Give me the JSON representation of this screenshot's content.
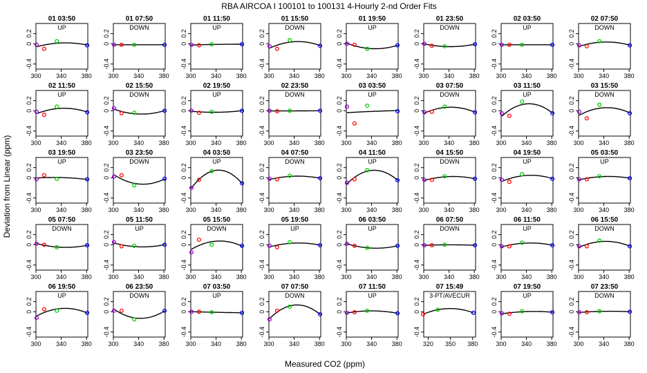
{
  "chart_data": {
    "type": "scatter",
    "title": "RBA   AIRCOA I   100101 to 100131   4-Hourly 2-nd Order Fits",
    "xlabel": "Measured CO2 (ppm)",
    "ylabel": "Deviation from Linear (ppm)",
    "xlim": [
      300,
      382
    ],
    "ylim": [
      -0.5,
      0.4
    ],
    "x_ticks": [
      300,
      340,
      380
    ],
    "y_ticks": [
      -0.4,
      0.0,
      0.2
    ],
    "y_tick_labels": [
      "-0.4",
      "0",
      "0.2"
    ],
    "grid": false,
    "point_x": [
      301,
      313,
      333,
      381
    ],
    "point_colors": [
      "#9900cc",
      "#ff0000",
      "#00cc00",
      "#0000ff"
    ],
    "panels": [
      {
        "label": "01 03:50",
        "dir": "UP",
        "y": [
          -0.02,
          -0.1,
          0.05,
          -0.03
        ]
      },
      {
        "label": "01 07:50",
        "dir": "DOWN",
        "y": [
          -0.02,
          -0.02,
          -0.02,
          -0.02
        ]
      },
      {
        "label": "01 11:50",
        "dir": "UP",
        "y": [
          -0.02,
          -0.03,
          -0.01,
          -0.01
        ]
      },
      {
        "label": "01 15:50",
        "dir": "DOWN",
        "y": [
          -0.05,
          -0.1,
          0.07,
          -0.04
        ]
      },
      {
        "label": "01 19:50",
        "dir": "UP",
        "y": [
          0.0,
          -0.02,
          -0.1,
          -0.03
        ]
      },
      {
        "label": "01 23:50",
        "dir": "DOWN",
        "y": [
          0.0,
          -0.04,
          -0.05,
          -0.01
        ]
      },
      {
        "label": "02 03:50",
        "dir": "UP",
        "y": [
          -0.02,
          -0.02,
          -0.02,
          -0.02
        ]
      },
      {
        "label": "02 07:50",
        "dir": "DOWN",
        "y": [
          -0.03,
          -0.05,
          0.05,
          -0.03
        ]
      },
      {
        "label": "02 11:50",
        "dir": "UP",
        "y": [
          -0.02,
          -0.08,
          0.08,
          -0.03
        ]
      },
      {
        "label": "02 15:50",
        "dir": "DOWN",
        "y": [
          0.05,
          -0.05,
          -0.04,
          0.0
        ]
      },
      {
        "label": "02 19:50",
        "dir": "UP",
        "y": [
          0.0,
          -0.04,
          -0.02,
          0.0
        ]
      },
      {
        "label": "02 23:50",
        "dir": "DOWN",
        "y": [
          0.0,
          -0.01,
          0.0,
          0.0
        ]
      },
      {
        "label": "03 03:50",
        "dir": "UP",
        "y": [
          0.08,
          -0.25,
          0.1,
          -0.01
        ]
      },
      {
        "label": "03 07:50",
        "dir": "DOWN",
        "y": [
          -0.03,
          -0.02,
          0.08,
          -0.03
        ]
      },
      {
        "label": "03 11:50",
        "dir": "UP",
        "y": [
          -0.05,
          -0.1,
          0.18,
          -0.05
        ]
      },
      {
        "label": "03 15:50",
        "dir": "DOWN",
        "y": [
          -0.02,
          -0.15,
          0.12,
          -0.05
        ]
      },
      {
        "label": "03 19:50",
        "dir": "UP",
        "y": [
          -0.03,
          0.05,
          -0.02,
          -0.03
        ]
      },
      {
        "label": "03 23:50",
        "dir": "DOWN",
        "y": [
          0.02,
          0.05,
          -0.15,
          -0.02
        ]
      },
      {
        "label": "04 03:50",
        "dir": "UP",
        "y": [
          -0.2,
          -0.04,
          0.13,
          -0.11
        ]
      },
      {
        "label": "04 07:50",
        "dir": "DOWN",
        "y": [
          -0.02,
          -0.03,
          0.04,
          -0.01
        ]
      },
      {
        "label": "04 11:50",
        "dir": "UP",
        "y": [
          -0.1,
          -0.03,
          0.15,
          -0.05
        ]
      },
      {
        "label": "04 15:50",
        "dir": "DOWN",
        "y": [
          -0.04,
          -0.04,
          0.03,
          -0.02
        ]
      },
      {
        "label": "04 19:50",
        "dir": "UP",
        "y": [
          -0.04,
          -0.08,
          0.07,
          -0.02
        ]
      },
      {
        "label": "05 03:50",
        "dir": "UP",
        "y": [
          -0.03,
          -0.03,
          0.03,
          -0.01
        ]
      },
      {
        "label": "05 07:50",
        "dir": "DOWN",
        "y": [
          0.02,
          0.0,
          -0.05,
          -0.01
        ]
      },
      {
        "label": "05 11:50",
        "dir": "UP",
        "y": [
          0.05,
          -0.03,
          -0.02,
          0.0
        ]
      },
      {
        "label": "05 15:50",
        "dir": "DOWN",
        "y": [
          -0.15,
          0.1,
          0.0,
          -0.02
        ]
      },
      {
        "label": "05 19:50",
        "dir": "UP",
        "y": [
          -0.02,
          -0.05,
          0.05,
          -0.01
        ]
      },
      {
        "label": "06 03:50",
        "dir": "UP",
        "y": [
          0.02,
          -0.02,
          -0.06,
          -0.02
        ]
      },
      {
        "label": "06 07:50",
        "dir": "DOWN",
        "y": [
          -0.01,
          -0.01,
          0.0,
          -0.01
        ]
      },
      {
        "label": "06 11:50",
        "dir": "UP",
        "y": [
          -0.03,
          -0.03,
          0.04,
          -0.01
        ]
      },
      {
        "label": "06 15:50",
        "dir": "DOWN",
        "y": [
          -0.03,
          -0.03,
          0.08,
          -0.03
        ]
      },
      {
        "label": "06 19:50",
        "dir": "UP",
        "y": [
          -0.12,
          0.05,
          0.02,
          -0.02
        ]
      },
      {
        "label": "06 23:50",
        "dir": "DOWN",
        "y": [
          0.02,
          0.02,
          -0.15,
          0.02
        ]
      },
      {
        "label": "07 03:50",
        "dir": "UP",
        "y": [
          0.0,
          0.0,
          -0.01,
          -0.02
        ]
      },
      {
        "label": "07 07:50",
        "dir": "DOWN",
        "y": [
          -0.15,
          0.02,
          0.1,
          -0.05
        ]
      },
      {
        "label": "07 11:50",
        "dir": "UP",
        "y": [
          -0.02,
          -0.01,
          0.02,
          -0.03
        ]
      },
      {
        "label": "07 15:49",
        "dir": "3-PT/AVECUR",
        "y": [
          null,
          -0.05,
          0.04,
          -0.02
        ],
        "xlim": [
          314,
          384
        ],
        "x_ticks": [
          320,
          350,
          380
        ]
      },
      {
        "label": "07 19:50",
        "dir": "UP",
        "y": [
          -0.03,
          -0.04,
          0.01,
          -0.01
        ]
      },
      {
        "label": "07 23:50",
        "dir": "DOWN",
        "y": [
          -0.01,
          -0.01,
          0.01,
          0.0
        ]
      }
    ]
  }
}
